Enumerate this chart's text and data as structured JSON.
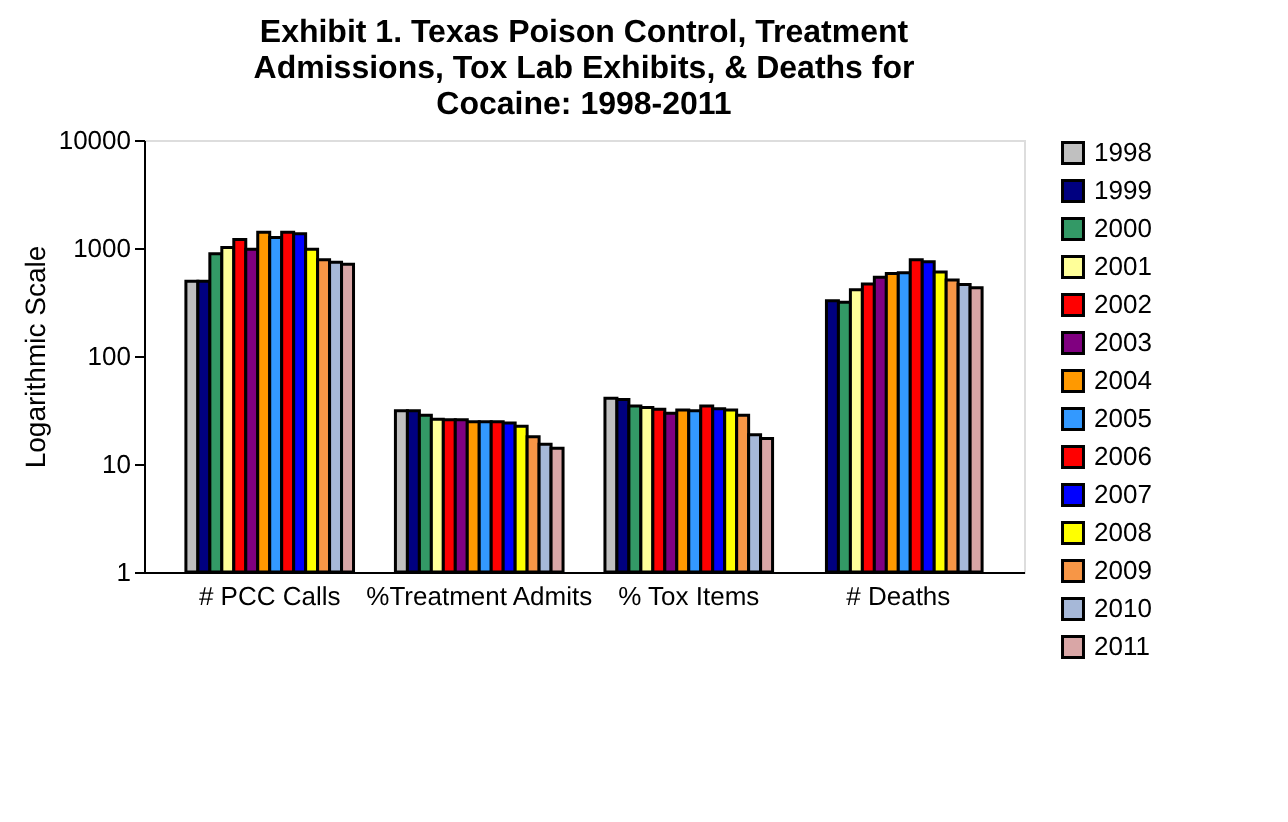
{
  "chart_data": {
    "type": "bar",
    "title": [
      "Exhibit 1. Texas Poison Control, Treatment",
      "Admissions, Tox Lab Exhibits, & Deaths for",
      "Cocaine: 1998-2011"
    ],
    "ylabel": "Logarithmic Scale",
    "log": true,
    "ylim": [
      1,
      10000
    ],
    "yticks": [
      1,
      10,
      100,
      1000,
      10000
    ],
    "grid": false,
    "legend": "right",
    "categories": [
      "# PCC Calls",
      "%Treatment Admits",
      "% Tox Items",
      "# Deaths"
    ],
    "series": [
      {
        "name": "1998",
        "color": "#c0c0c0",
        "values": [
          492,
          31.2,
          40.6,
          null
        ]
      },
      {
        "name": "1999",
        "color": "#000080",
        "values": [
          492,
          31.2,
          39.5,
          324
        ]
      },
      {
        "name": "2000",
        "color": "#339966",
        "values": [
          883,
          28.3,
          34.4,
          315
        ]
      },
      {
        "name": "2001",
        "color": "#ffff99",
        "values": [
          1010,
          26.0,
          33.4,
          411
        ]
      },
      {
        "name": "2002",
        "color": "#ff0000",
        "values": [
          1198,
          25.7,
          32.1,
          465
        ]
      },
      {
        "name": "2003",
        "color": "#800080",
        "values": [
          973,
          25.7,
          29.5,
          535
        ]
      },
      {
        "name": "2004",
        "color": "#ff9900",
        "values": [
          1396,
          24.6,
          31.6,
          581
        ]
      },
      {
        "name": "2005",
        "color": "#3399ff",
        "values": [
          1250,
          24.6,
          31.2,
          590
        ]
      },
      {
        "name": "2006",
        "color": "#ff0000",
        "values": [
          1396,
          24.6,
          34.4,
          778
        ]
      },
      {
        "name": "2007",
        "color": "#0000ff",
        "values": [
          1358,
          24.0,
          32.5,
          747
        ]
      },
      {
        "name": "2008",
        "color": "#ffff00",
        "values": [
          973,
          22.4,
          31.6,
          598
        ]
      },
      {
        "name": "2009",
        "color": "#f79646",
        "values": [
          778,
          17.9,
          28.3,
          506
        ]
      },
      {
        "name": "2010",
        "color": "#a6b8d8",
        "values": [
          737,
          15.2,
          18.7,
          459
        ]
      },
      {
        "name": "2011",
        "color": "#d9a6a6",
        "values": [
          706,
          14.0,
          17.2,
          428
        ]
      }
    ]
  }
}
